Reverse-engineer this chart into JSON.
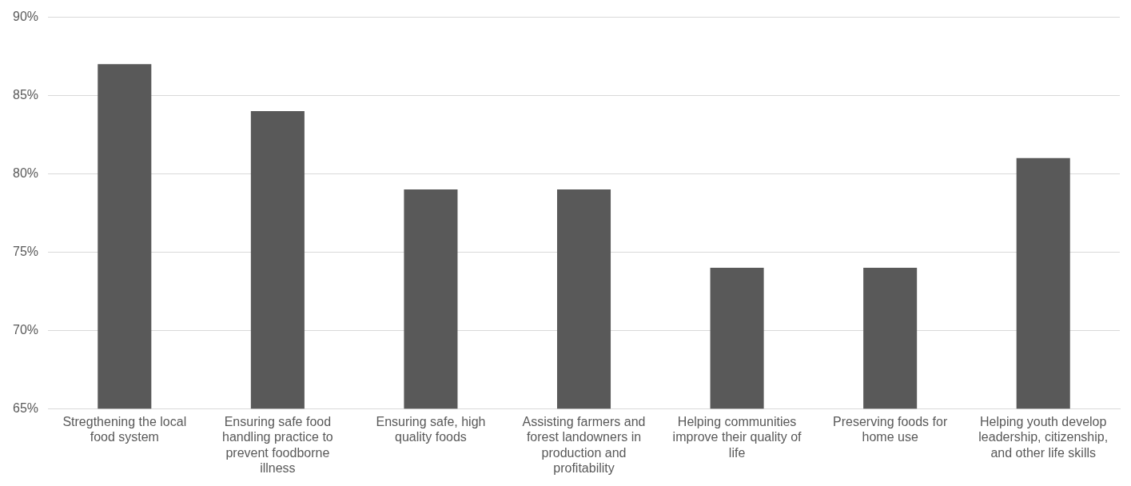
{
  "chart_data": {
    "type": "bar",
    "categories": [
      "Stregthening the local food system",
      "Ensuring safe food handling practice to prevent foodborne illness",
      "Ensuring safe, high quality foods",
      "Assisting farmers and forest landowners in production and profitability",
      "Helping communities improve their quality of life",
      "Preserving foods for home use",
      "Helping youth develop leadership, citizenship, and other life skills"
    ],
    "values": [
      87,
      84,
      79,
      79,
      74,
      74,
      81
    ],
    "color": "#595959",
    "ylim": [
      65,
      90
    ],
    "yticks": [
      {
        "value": 65,
        "label": "65%"
      },
      {
        "value": 70,
        "label": "70%"
      },
      {
        "value": 75,
        "label": "75%"
      },
      {
        "value": 80,
        "label": "80%"
      },
      {
        "value": 85,
        "label": "85%"
      },
      {
        "value": 90,
        "label": "90%"
      }
    ],
    "grid": "y",
    "legend": false
  }
}
